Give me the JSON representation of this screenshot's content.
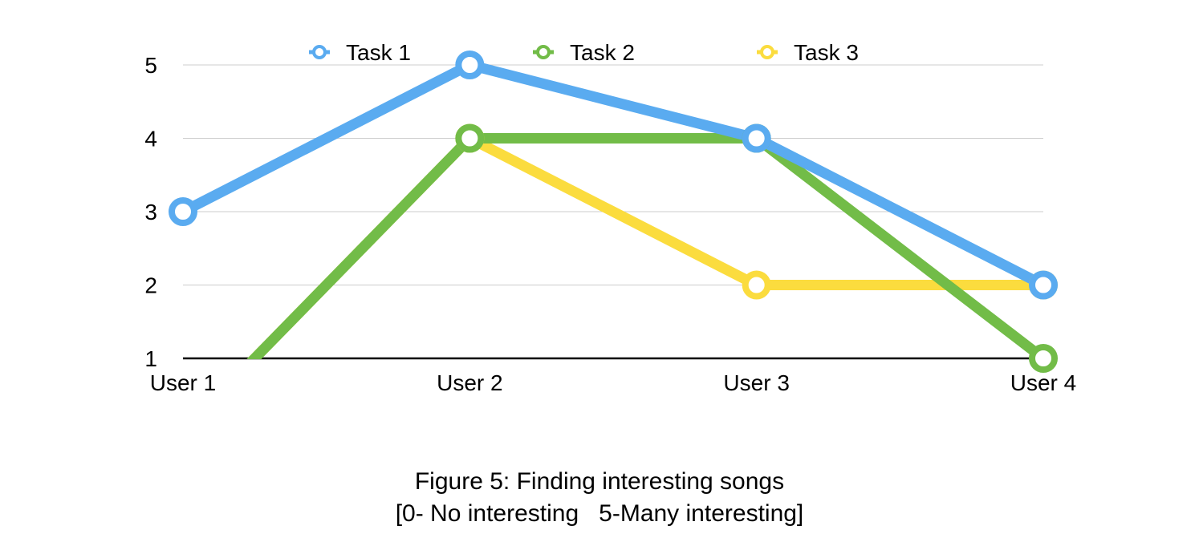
{
  "chart_data": {
    "type": "line",
    "categories": [
      "User 1",
      "User 2",
      "User 3",
      "User 4"
    ],
    "ylim": [
      1,
      5
    ],
    "yticks": [
      1,
      2,
      3,
      4,
      5
    ],
    "grid": true,
    "legend_position": "top",
    "series": [
      {
        "name": "Task 1",
        "color": "#5aabf0",
        "values": [
          3,
          5,
          4,
          2
        ]
      },
      {
        "name": "Task 2",
        "color": "#72bc48",
        "values": [
          0,
          4,
          4,
          1
        ]
      },
      {
        "name": "Task 3",
        "color": "#fbdc3e",
        "values": [
          0,
          4,
          2,
          2
        ]
      }
    ]
  },
  "caption": {
    "line1": "Figure 5: Finding interesting songs",
    "line2": "[0- No interesting   5-Many interesting]"
  }
}
